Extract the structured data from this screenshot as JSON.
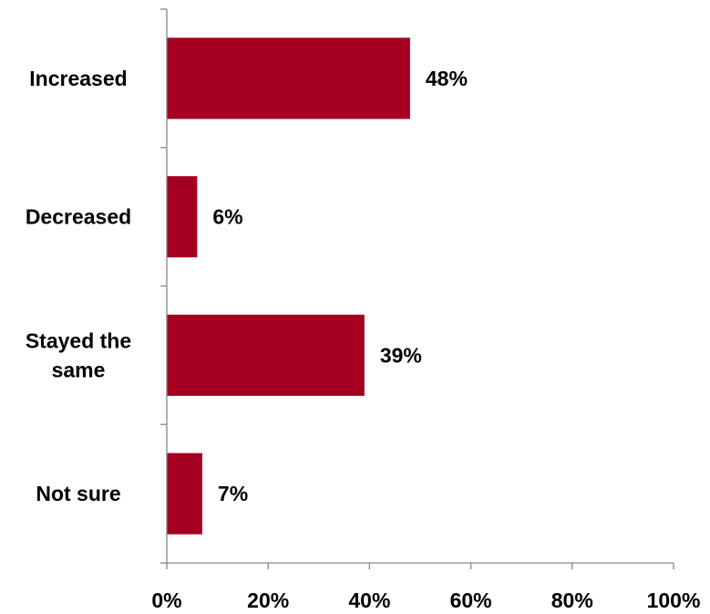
{
  "chart_data": {
    "type": "bar",
    "orientation": "horizontal",
    "categories": [
      [
        "Increased"
      ],
      [
        "Decreased"
      ],
      [
        "Stayed the",
        "same"
      ],
      [
        "Not sure"
      ]
    ],
    "values": [
      48,
      6,
      39,
      7
    ],
    "value_labels": [
      "48%",
      "6%",
      "39%",
      "7%"
    ],
    "xlim": [
      0,
      100
    ],
    "x_ticks": [
      0,
      20,
      40,
      60,
      80,
      100
    ],
    "x_tick_labels": [
      "0%",
      "20%",
      "40%",
      "60%",
      "80%",
      "100%"
    ],
    "title": "",
    "xlabel": "",
    "ylabel": "",
    "grid": false,
    "legend": "none",
    "bar_color": "#a50021",
    "axis_color": "#868686"
  }
}
